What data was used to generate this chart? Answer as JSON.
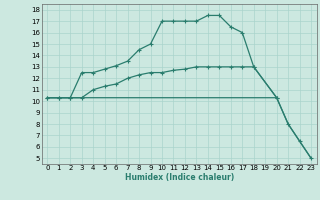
{
  "xlabel": "Humidex (Indice chaleur)",
  "bg_color": "#cce8e0",
  "line_color": "#2a7d6e",
  "grid_color": "#aad4cc",
  "xlim": [
    -0.5,
    23.5
  ],
  "ylim": [
    4.5,
    18.5
  ],
  "yticks": [
    5,
    6,
    7,
    8,
    9,
    10,
    11,
    12,
    13,
    14,
    15,
    16,
    17,
    18
  ],
  "xticks": [
    0,
    1,
    2,
    3,
    4,
    5,
    6,
    7,
    8,
    9,
    10,
    11,
    12,
    13,
    14,
    15,
    16,
    17,
    18,
    19,
    20,
    21,
    22,
    23
  ],
  "line1_x": [
    0,
    1,
    2,
    3,
    4,
    5,
    6,
    7,
    8,
    9,
    10,
    11,
    12,
    13,
    14,
    15,
    16,
    17,
    18,
    20,
    21,
    22,
    23
  ],
  "line1_y": [
    10.3,
    10.3,
    10.3,
    12.5,
    12.5,
    12.8,
    13.1,
    13.5,
    14.5,
    15.0,
    17.0,
    17.0,
    17.0,
    17.0,
    17.5,
    17.5,
    16.5,
    16.0,
    13.0,
    10.3,
    8.0,
    6.5,
    5.0
  ],
  "line2_x": [
    0,
    1,
    2,
    3,
    4,
    5,
    6,
    7,
    8,
    9,
    10,
    11,
    12,
    13,
    14,
    15,
    16,
    17,
    18,
    20
  ],
  "line2_y": [
    10.3,
    10.3,
    10.3,
    10.3,
    11.0,
    11.3,
    11.5,
    12.0,
    12.3,
    12.5,
    12.5,
    12.7,
    12.8,
    13.0,
    13.0,
    13.0,
    13.0,
    13.0,
    13.0,
    10.3
  ],
  "line3_x": [
    0,
    1,
    20,
    21,
    22,
    23
  ],
  "line3_y": [
    10.3,
    10.3,
    10.3,
    8.0,
    6.5,
    5.0
  ]
}
